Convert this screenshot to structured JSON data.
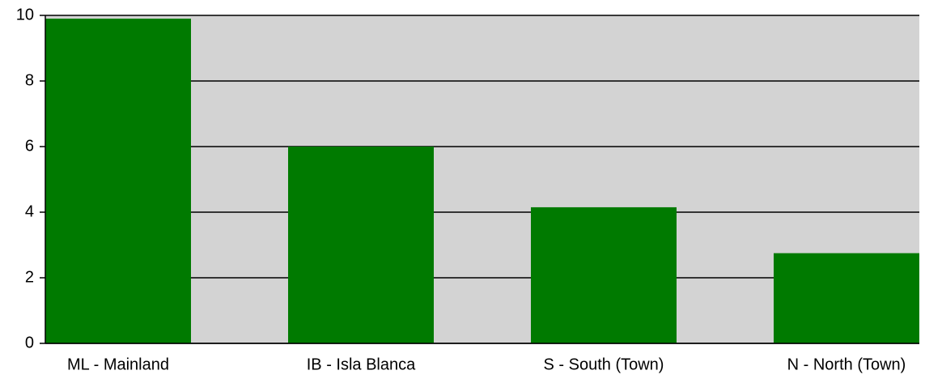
{
  "chart_data": {
    "type": "bar",
    "categories": [
      "ML - Mainland",
      "IB - Isla Blanca",
      "S - South (Town)",
      "N - North (Town)"
    ],
    "values": [
      9.9,
      6.0,
      4.15,
      2.75
    ],
    "color": "#007a00",
    "background": "#d3d3d3",
    "ylim": [
      0,
      10
    ],
    "yticks": [
      0,
      2,
      4,
      6,
      8,
      10
    ],
    "grid": true
  }
}
